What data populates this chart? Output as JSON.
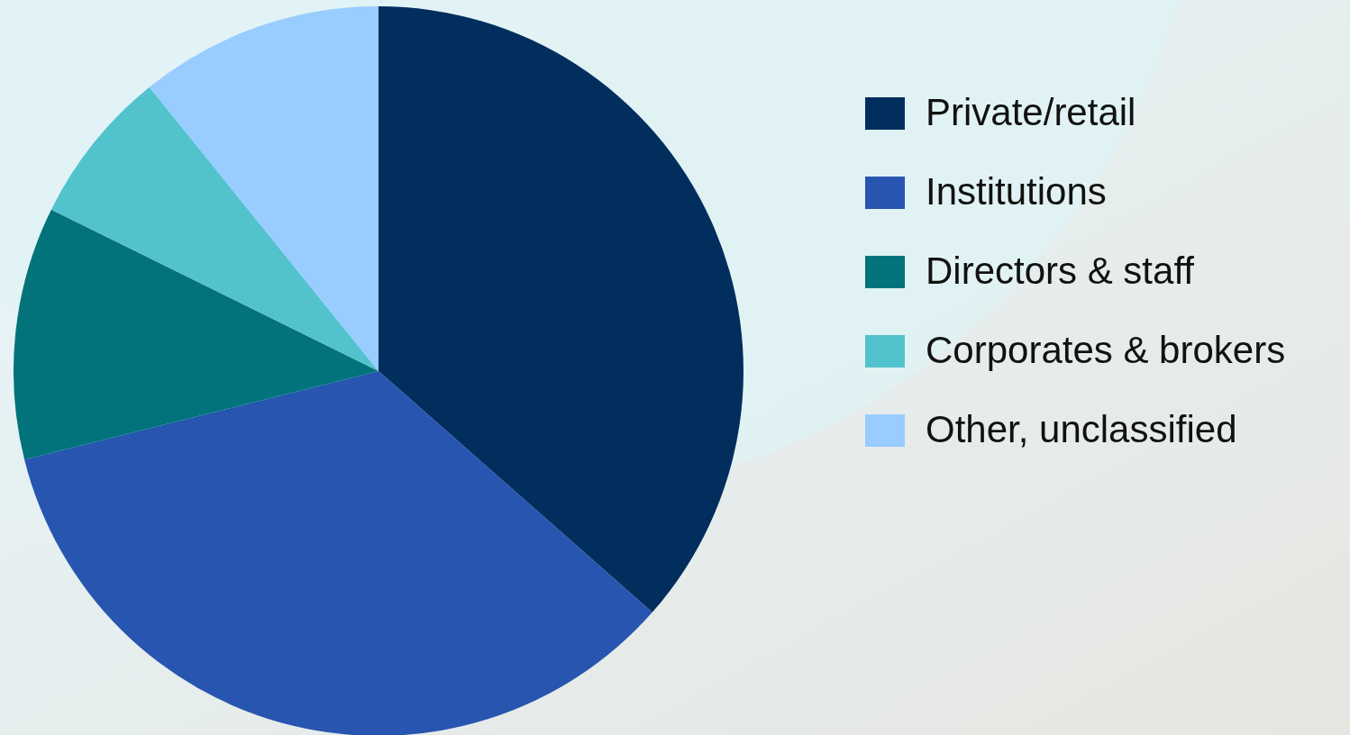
{
  "chart_data": {
    "type": "pie",
    "categories": [
      "Private/retail",
      "Institutions",
      "Directors & staff",
      "Corporates & brokers",
      "Other, unclassified"
    ],
    "values": [
      36.5,
      34.6,
      11.2,
      6.9,
      10.8
    ],
    "colors": [
      "#022e5e",
      "#2855b0",
      "#02737a",
      "#52c3cc",
      "#99ccff"
    ],
    "legend": "right"
  }
}
